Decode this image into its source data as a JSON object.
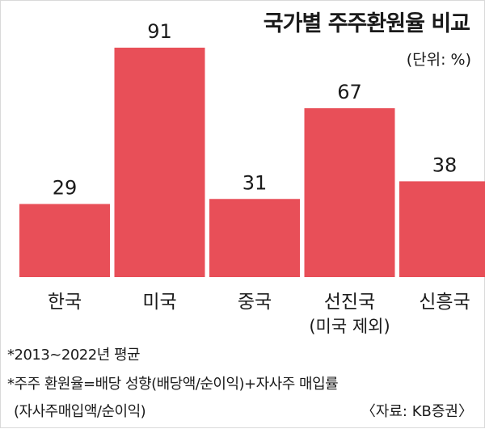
{
  "chart_data": {
    "type": "bar",
    "title": "국가별 주주환원율 비교",
    "unit": "(단위: %)",
    "categories": [
      "한국",
      "미국",
      "중국",
      "선진국",
      "신흥국"
    ],
    "category_sublabels": [
      "",
      "",
      "",
      "(미국 제외)",
      ""
    ],
    "values": [
      29,
      91,
      31,
      67,
      38
    ],
    "ylim": [
      0,
      100
    ],
    "grid": false,
    "legend": "none",
    "bar_color": "#e84f58"
  },
  "footnotes": {
    "period": "*2013~2022년 평균",
    "definition": "*주주 환원율=배당 성향(배당액/순이익)+자사주 매입률",
    "definition_cont": "(자사주매입액/순이익)"
  },
  "source": "〈자료: KB증권〉"
}
